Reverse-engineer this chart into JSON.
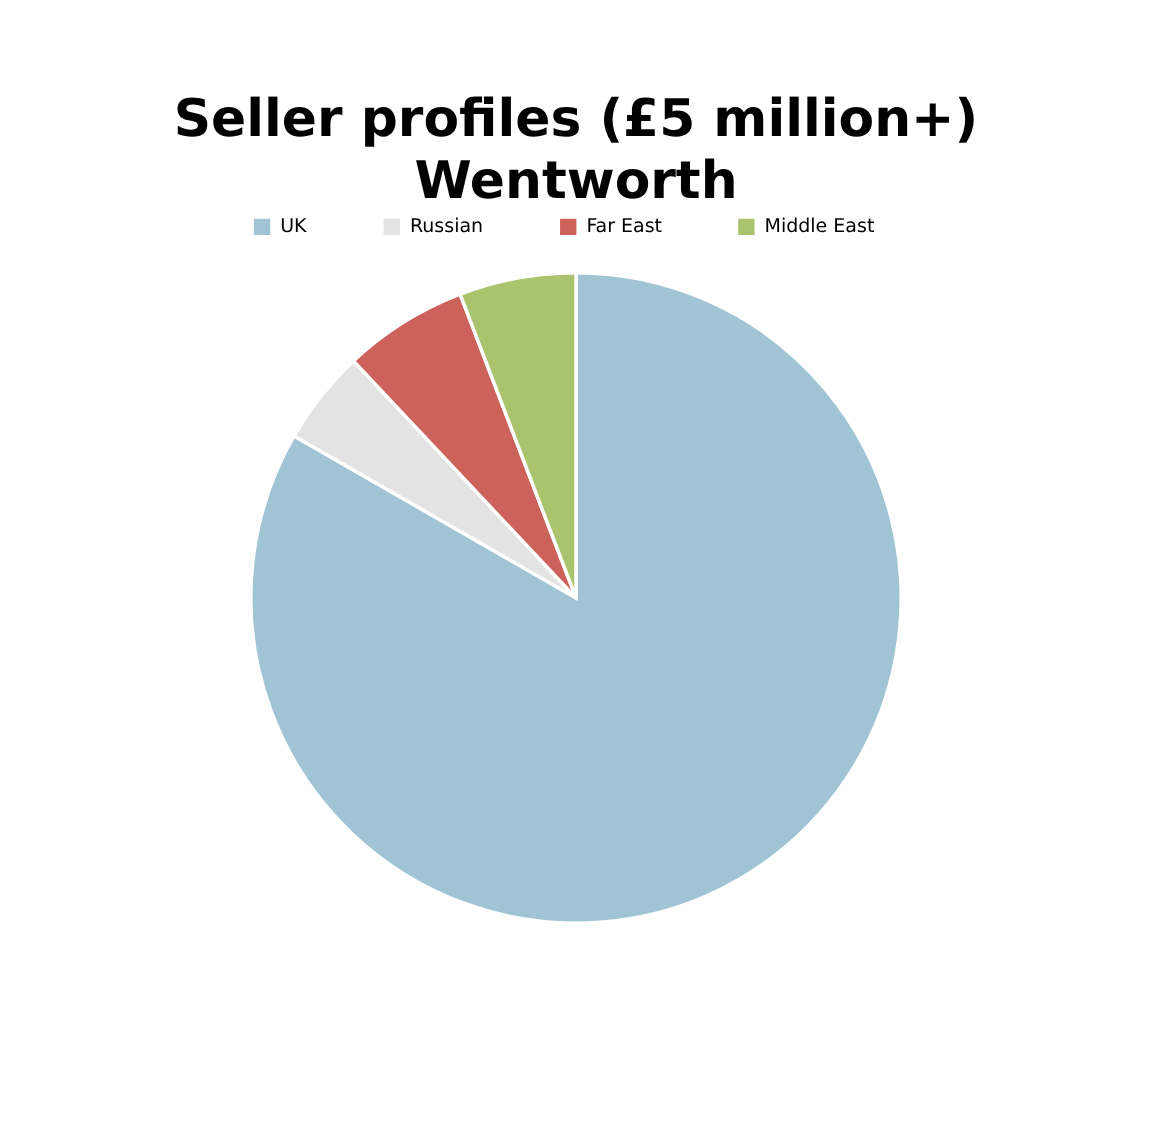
{
  "chart_data": {
    "type": "pie",
    "title": "Seller profiles (£5 million+)\nWentworth",
    "categories": [
      "UK",
      "Russian",
      "Far East",
      "Middle East"
    ],
    "values": [
      83.3,
      4.7,
      6.2,
      5.8
    ],
    "colors": [
      "#a0c4d4",
      "#e3e3e3",
      "#cd625b",
      "#aac46e"
    ],
    "legend": "top"
  }
}
